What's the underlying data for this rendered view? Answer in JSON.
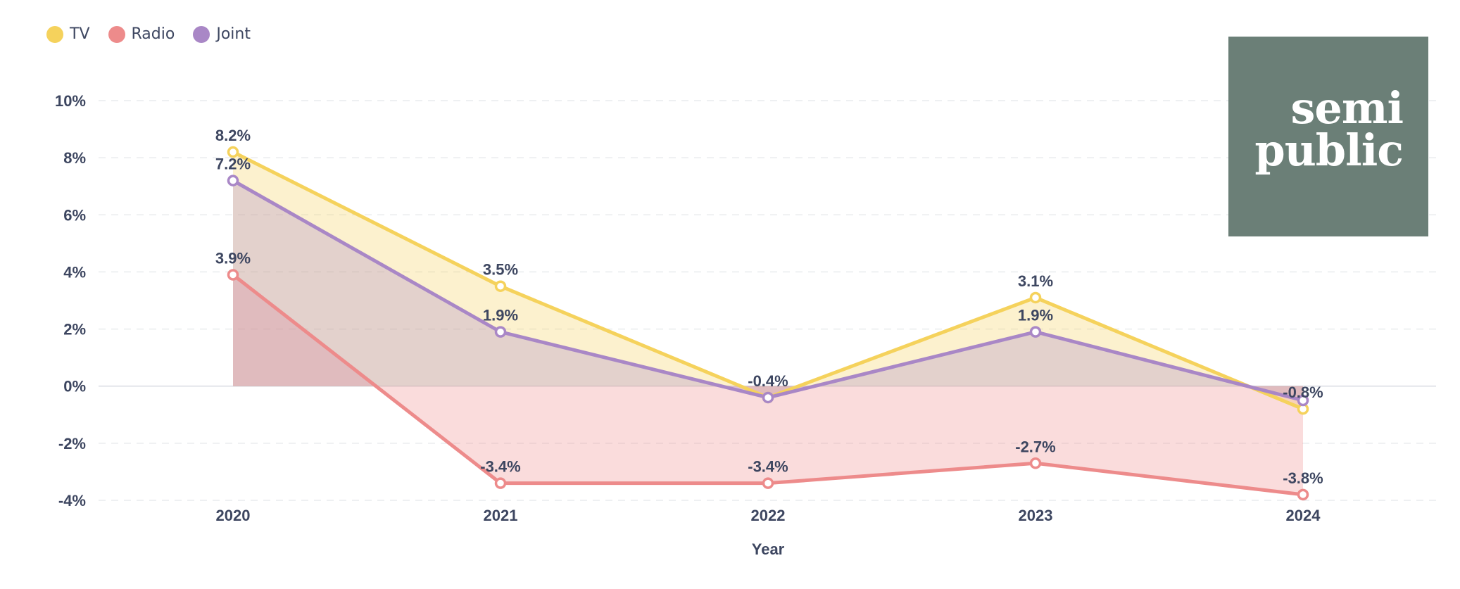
{
  "chart_data": {
    "type": "area",
    "x": [
      "2020",
      "2021",
      "2022",
      "2023",
      "2024"
    ],
    "xlabel": "Year",
    "ylabel": "",
    "ylim": [
      -4,
      10
    ],
    "yticks": [
      "10%",
      "8%",
      "6%",
      "4%",
      "2%",
      "0%",
      "-2%",
      "-4%"
    ],
    "grid": "horizontal, dashed",
    "legend_position": "top-left",
    "series": [
      {
        "name": "TV",
        "color": "#f5d25c",
        "values": [
          8.2,
          3.5,
          -0.4,
          3.1,
          -0.8
        ],
        "labels": [
          "8.2%",
          "3.5%",
          "-0.4%",
          "3.1%",
          "-0.8%"
        ]
      },
      {
        "name": "Radio",
        "color": "#ed8b8b",
        "values": [
          3.9,
          -3.4,
          -3.4,
          -2.7,
          -3.8
        ],
        "labels": [
          "3.9%",
          "-3.4%",
          "-3.4%",
          "-2.7%",
          "-3.8%"
        ]
      },
      {
        "name": "Joint",
        "color": "#a987c6",
        "values": [
          7.2,
          1.9,
          -0.4,
          1.9,
          -0.5
        ],
        "labels": [
          "7.2%",
          "1.9%",
          "",
          "1.9%",
          ""
        ]
      }
    ]
  },
  "brand": {
    "line1": "semi",
    "line2": "public",
    "background": "#6b7f77"
  }
}
